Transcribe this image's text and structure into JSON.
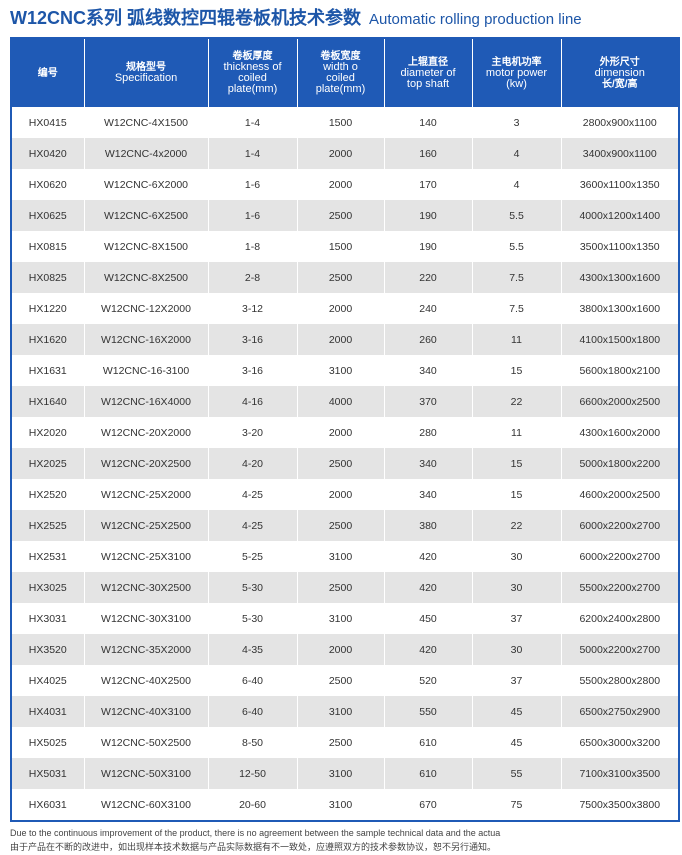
{
  "title": {
    "cn": "W12CNC系列 弧线数控四辊卷板机技术参数",
    "en": "Automatic rolling production line"
  },
  "headers": [
    {
      "cn": "编号",
      "en": ""
    },
    {
      "cn": "规格型号",
      "en": "Specification"
    },
    {
      "cn": "卷板厚度",
      "en": "thickness of coiled plate(mm)"
    },
    {
      "cn": "卷板宽度",
      "en": "width o coiled plate(mm)"
    },
    {
      "cn": "上辊直径",
      "en": "diameter of top shaft"
    },
    {
      "cn": "主电机功率",
      "en": "motor power (kw)"
    },
    {
      "cn": "外形尺寸",
      "en": "dimension",
      "cn2": "长/宽/高"
    }
  ],
  "rows": [
    [
      "HX0415",
      "W12CNC-4X1500",
      "1-4",
      "1500",
      "140",
      "3",
      "2800x900x1100"
    ],
    [
      "HX0420",
      "W12CNC-4x2000",
      "1-4",
      "2000",
      "160",
      "4",
      "3400x900x1100"
    ],
    [
      "HX0620",
      "W12CNC-6X2000",
      "1-6",
      "2000",
      "170",
      "4",
      "3600x1100x1350"
    ],
    [
      "HX0625",
      "W12CNC-6X2500",
      "1-6",
      "2500",
      "190",
      "5.5",
      "4000x1200x1400"
    ],
    [
      "HX0815",
      "W12CNC-8X1500",
      "1-8",
      "1500",
      "190",
      "5.5",
      "3500x1100x1350"
    ],
    [
      "HX0825",
      "W12CNC-8X2500",
      "2-8",
      "2500",
      "220",
      "7.5",
      "4300x1300x1600"
    ],
    [
      "HX1220",
      "W12CNC-12X2000",
      "3-12",
      "2000",
      "240",
      "7.5",
      "3800x1300x1600"
    ],
    [
      "HX1620",
      "W12CNC-16X2000",
      "3-16",
      "2000",
      "260",
      "11",
      "4100x1500x1800"
    ],
    [
      "HX1631",
      "W12CNC-16-3100",
      "3-16",
      "3100",
      "340",
      "15",
      "5600x1800x2100"
    ],
    [
      "HX1640",
      "W12CNC-16X4000",
      "4-16",
      "4000",
      "370",
      "22",
      "6600x2000x2500"
    ],
    [
      "HX2020",
      "W12CNC-20X2000",
      "3-20",
      "2000",
      "280",
      "11",
      "4300x1600x2000"
    ],
    [
      "HX2025",
      "W12CNC-20X2500",
      "4-20",
      "2500",
      "340",
      "15",
      "5000x1800x2200"
    ],
    [
      "HX2520",
      "W12CNC-25X2000",
      "4-25",
      "2000",
      "340",
      "15",
      "4600x2000x2500"
    ],
    [
      "HX2525",
      "W12CNC-25X2500",
      "4-25",
      "2500",
      "380",
      "22",
      "6000x2200x2700"
    ],
    [
      "HX2531",
      "W12CNC-25X3100",
      "5-25",
      "3100",
      "420",
      "30",
      "6000x2200x2700"
    ],
    [
      "HX3025",
      "W12CNC-30X2500",
      "5-30",
      "2500",
      "420",
      "30",
      "5500x2200x2700"
    ],
    [
      "HX3031",
      "W12CNC-30X3100",
      "5-30",
      "3100",
      "450",
      "37",
      "6200x2400x2800"
    ],
    [
      "HX3520",
      "W12CNC-35X2000",
      "4-35",
      "2000",
      "420",
      "30",
      "5000x2200x2700"
    ],
    [
      "HX4025",
      "W12CNC-40X2500",
      "6-40",
      "2500",
      "520",
      "37",
      "5500x2800x2800"
    ],
    [
      "HX4031",
      "W12CNC-40X3100",
      "6-40",
      "3100",
      "550",
      "45",
      "6500x2750x2900"
    ],
    [
      "HX5025",
      "W12CNC-50X2500",
      "8-50",
      "2500",
      "610",
      "45",
      "6500x3000x3200"
    ],
    [
      "HX5031",
      "W12CNC-50X3100",
      "12-50",
      "3100",
      "610",
      "55",
      "7100x3100x3500"
    ],
    [
      "HX6031",
      "W12CNC-60X3100",
      "20-60",
      "3100",
      "670",
      "75",
      "7500x3500x3800"
    ]
  ],
  "note": {
    "en": "Due to the continuous improvement of the product, there is no agreement between the sample technical data and the actua",
    "cn": "由于产品在不断的改进中，如出现样本技术数据与产品实际数据有不一致处，应遵照双方的技术参数协议，恕不另行通知。"
  },
  "colors": {
    "accent": "#1f5ab6",
    "stripe": "#e4e4e4"
  }
}
